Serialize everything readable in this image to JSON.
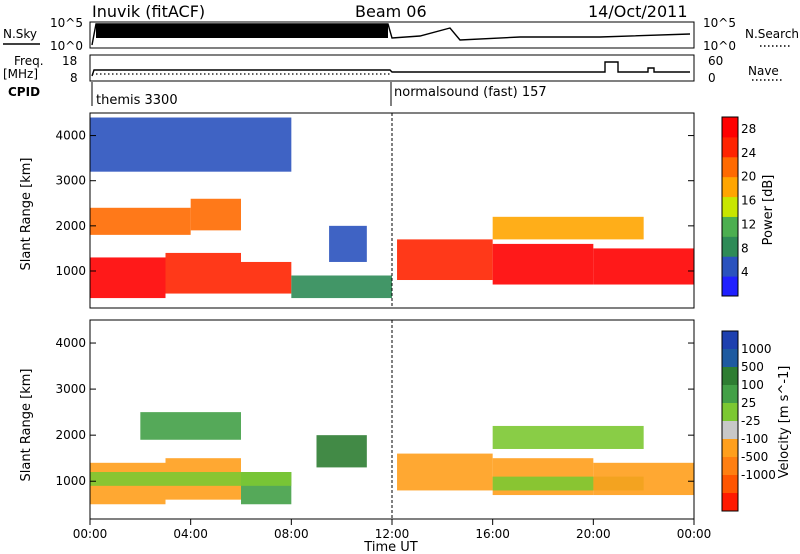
{
  "header": {
    "station": "Inuvik (fitACF)",
    "beam": "Beam 06",
    "date": "14/Oct/2011"
  },
  "noise_panel": {
    "left_label": "N.Sky",
    "right_label": "N.Search",
    "left_ticks": [
      "10^5",
      "10^0"
    ],
    "right_ticks": [
      "10^5",
      "10^0"
    ]
  },
  "freq_panel": {
    "left_label": "Freq.",
    "left_unit": "[MHz]",
    "right_label": "Nave",
    "left_ticks": [
      "18",
      "8"
    ],
    "right_ticks": [
      "60",
      "0"
    ],
    "cpid_label": "CPID",
    "cpid_segments": [
      {
        "label": "themis 3300",
        "start_hour": 0,
        "end_hour": 12
      },
      {
        "label": "normalsound (fast) 157",
        "start_hour": 12,
        "end_hour": 24
      }
    ]
  },
  "icons": {
    "right_label_marker": "dotted-line-icon"
  },
  "colors": {
    "power_scale": [
      "#2020ff",
      "#2a52be",
      "#2e8b57",
      "#4caf50",
      "#c8e600",
      "#ffa500",
      "#ff6a00",
      "#ff2400",
      "#ff0000"
    ],
    "velocity_scale": [
      "#1e40af",
      "#1e5aa0",
      "#2e7d32",
      "#43a047",
      "#7cc832",
      "#c8c8c8",
      "#ff9f1c",
      "#ff7f11",
      "#ff5500",
      "#ff1a00"
    ]
  },
  "chart_data": [
    {
      "type": "heatmap",
      "name": "power",
      "ylabel": "Slant Range [km]",
      "yticks": [
        "1000",
        "2000",
        "3000",
        "4000"
      ],
      "ylim": [
        180,
        4500
      ],
      "xlim": [
        0,
        24
      ],
      "colorbar_label": "Power [dB]",
      "colorbar_ticks": [
        "4",
        "8",
        "12",
        "16",
        "20",
        "24",
        "28"
      ],
      "colorbar_range": [
        0,
        30
      ],
      "bands": [
        {
          "x0": 0.0,
          "x1": 3.0,
          "y0": 400,
          "y1": 1300,
          "value": 28
        },
        {
          "x0": 3.0,
          "x1": 6.0,
          "y0": 500,
          "y1": 1400,
          "value": 26
        },
        {
          "x0": 6.0,
          "x1": 8.0,
          "y0": 500,
          "y1": 1200,
          "value": 24
        },
        {
          "x0": 8.0,
          "x1": 12.0,
          "y0": 400,
          "y1": 900,
          "value": 8
        },
        {
          "x0": 0.0,
          "x1": 4.0,
          "y0": 1800,
          "y1": 2400,
          "value": 20
        },
        {
          "x0": 4.0,
          "x1": 6.0,
          "y0": 1900,
          "y1": 2600,
          "value": 22
        },
        {
          "x0": 9.5,
          "x1": 11.0,
          "y0": 1200,
          "y1": 2000,
          "value": 6
        },
        {
          "x0": 12.2,
          "x1": 16.0,
          "y0": 800,
          "y1": 1700,
          "value": 26
        },
        {
          "x0": 16.0,
          "x1": 20.0,
          "y0": 700,
          "y1": 1600,
          "value": 27
        },
        {
          "x0": 20.0,
          "x1": 24.0,
          "y0": 700,
          "y1": 1500,
          "value": 28
        },
        {
          "x0": 16.0,
          "x1": 22.0,
          "y0": 1700,
          "y1": 2200,
          "value": 18
        },
        {
          "x0": 0.0,
          "x1": 8.0,
          "y0": 3200,
          "y1": 4400,
          "value": 6
        }
      ]
    },
    {
      "type": "heatmap",
      "name": "velocity",
      "ylabel": "Slant Range [km]",
      "yticks": [
        "1000",
        "2000",
        "3000",
        "4000"
      ],
      "ylim": [
        180,
        4500
      ],
      "xlim": [
        0,
        24
      ],
      "colorbar_label": "Velocity [m s^-1]",
      "colorbar_ticks": [
        "1000",
        "500",
        "100",
        "25",
        "-25",
        "-100",
        "-500",
        "-1000"
      ],
      "xticks": [
        "00:00",
        "04:00",
        "08:00",
        "12:00",
        "16:00",
        "20:00",
        "00:00"
      ],
      "xlabel": "Time UT",
      "bands": [
        {
          "x0": 0.0,
          "x1": 3.0,
          "y0": 500,
          "y1": 1400,
          "value": -200
        },
        {
          "x0": 3.0,
          "x1": 6.0,
          "y0": 600,
          "y1": 1500,
          "value": -300
        },
        {
          "x0": 6.0,
          "x1": 8.0,
          "y0": 500,
          "y1": 1200,
          "value": 80
        },
        {
          "x0": 0.0,
          "x1": 8.0,
          "y0": 900,
          "y1": 1200,
          "value": 0
        },
        {
          "x0": 2.0,
          "x1": 6.0,
          "y0": 1900,
          "y1": 2500,
          "value": 60
        },
        {
          "x0": 9.0,
          "x1": 11.0,
          "y0": 1300,
          "y1": 2000,
          "value": 150
        },
        {
          "x0": 12.2,
          "x1": 16.0,
          "y0": 800,
          "y1": 1600,
          "value": -250
        },
        {
          "x0": 16.0,
          "x1": 20.0,
          "y0": 700,
          "y1": 1500,
          "value": -150
        },
        {
          "x0": 16.0,
          "x1": 22.0,
          "y0": 800,
          "y1": 1100,
          "value": 0
        },
        {
          "x0": 20.0,
          "x1": 24.0,
          "y0": 700,
          "y1": 1400,
          "value": -300
        },
        {
          "x0": 16.0,
          "x1": 22.0,
          "y0": 1700,
          "y1": 2200,
          "value": 10
        }
      ]
    }
  ]
}
